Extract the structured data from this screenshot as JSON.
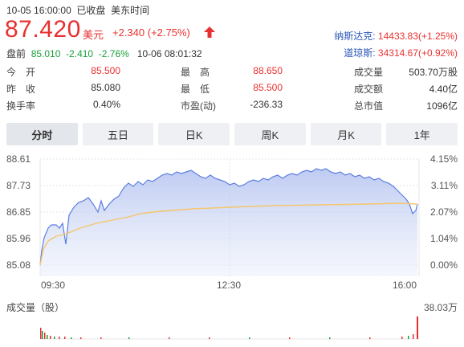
{
  "header": {
    "datetime": "10-05 16:00:00",
    "status": "已收盘",
    "timezone": "美东时间",
    "price": "87.420",
    "currency": "美元",
    "change": "+2.340 (+2.75%)",
    "direction_icon": "up-arrow-icon",
    "premarket_label": "盘前",
    "premarket_price": "85.010",
    "premarket_change": "-2.410",
    "premarket_pct": "-2.76%",
    "premarket_time": "10-06 08:01:32"
  },
  "indices": [
    {
      "label": "纳斯达克:",
      "value": "14433.83(+1.25%)"
    },
    {
      "label": "道琼斯:",
      "value": "34314.67(+0.92%)"
    }
  ],
  "stats": [
    [
      {
        "label": "今　开",
        "value": "85.500"
      },
      {
        "label": "最　高",
        "value": "88.650"
      },
      {
        "label": "成交量",
        "value": "503.70万股"
      }
    ],
    [
      {
        "label": "昨　收",
        "value": "85.080"
      },
      {
        "label": "最　低",
        "value": "85.500"
      },
      {
        "label": "成交额",
        "value": "4.40亿"
      }
    ],
    [
      {
        "label": "换手率",
        "value": "0.40%"
      },
      {
        "label": "市盈(动)",
        "value": "-236.33"
      },
      {
        "label": "总市值",
        "value": "1096亿"
      }
    ]
  ],
  "tabs": [
    "分时",
    "五日",
    "日K",
    "周K",
    "月K",
    "1年"
  ],
  "active_tab": "分时",
  "chart": {
    "price_ticks": [
      "88.61",
      "87.73",
      "86.85",
      "85.96",
      "85.08"
    ],
    "pct_ticks": [
      "4.15%",
      "3.11%",
      "2.07%",
      "1.04%",
      "0.00%"
    ],
    "time_ticks": [
      "09:30",
      "12:30",
      "16:00"
    ],
    "volume_label": "成交量（股）",
    "volume_max": "38.03万"
  },
  "colors": {
    "up": "#e93030",
    "down": "#1a9e3a",
    "index_blue": "#2a56b8",
    "price_line": "#5b7ee0",
    "avg_line": "#f5c56b"
  }
}
